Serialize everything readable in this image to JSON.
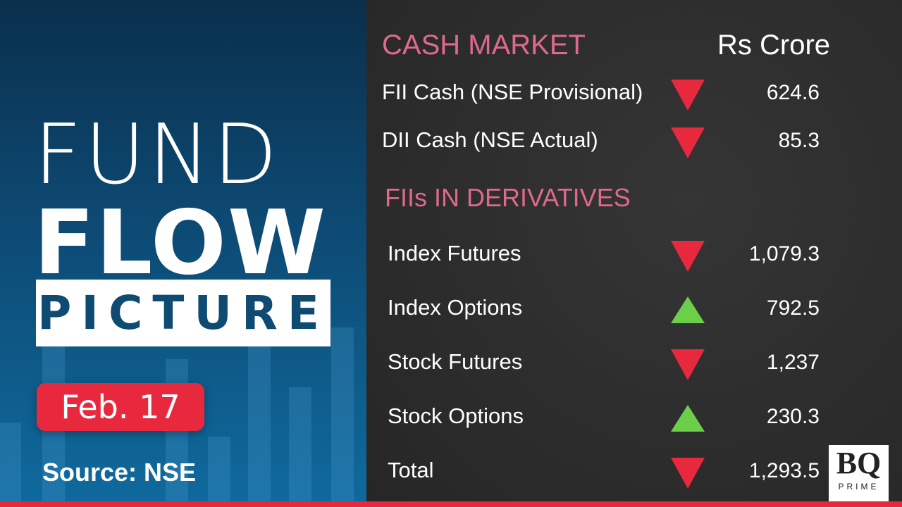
{
  "title": {
    "line1": "FUND",
    "line2": "FLOW",
    "line3": "PICTURE"
  },
  "date": "Feb. 17",
  "source": "Source: NSE",
  "cash_market": {
    "heading": "CASH MARKET",
    "unit": "Rs Crore",
    "rows": [
      {
        "label": "FII Cash (NSE Provisional)",
        "direction": "down",
        "value": "624.6"
      },
      {
        "label": "DII Cash (NSE Actual)",
        "direction": "down",
        "value": "85.3"
      }
    ]
  },
  "derivatives": {
    "heading": "FIIs IN DERIVATIVES",
    "rows": [
      {
        "label": "Index Futures",
        "direction": "down",
        "value": "1,079.3"
      },
      {
        "label": "Index Options",
        "direction": "up",
        "value": "792.5"
      },
      {
        "label": "Stock Futures",
        "direction": "down",
        "value": "1,237"
      },
      {
        "label": "Stock Options",
        "direction": "up",
        "value": "230.3"
      },
      {
        "label": "Total",
        "direction": "down",
        "value": "1,293.5"
      }
    ]
  },
  "logo": {
    "main": "BQ",
    "sub": "PRIME"
  },
  "colors": {
    "accent_red": "#e8283c",
    "up_green": "#6ccf4a",
    "heading_pink": "#e0698a",
    "panel_blue": "#0d4a74"
  }
}
